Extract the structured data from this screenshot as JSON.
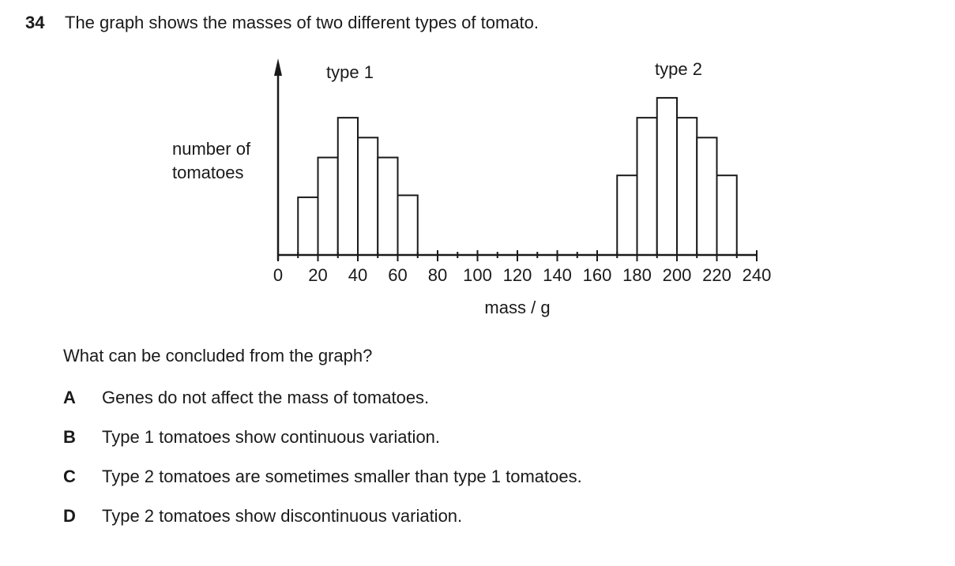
{
  "question": {
    "number": "34",
    "text": "The graph shows the masses of two different types of tomato.",
    "prompt": "What can be concluded from the graph?"
  },
  "options": [
    {
      "letter": "A",
      "text": "Genes do not affect the mass of tomatoes."
    },
    {
      "letter": "B",
      "text": "Type 1 tomatoes show continuous variation."
    },
    {
      "letter": "C",
      "text": "Type 2 tomatoes are sometimes smaller than type 1 tomatoes."
    },
    {
      "letter": "D",
      "text": "Type 2 tomatoes show discontinuous variation."
    }
  ],
  "chart_data": {
    "type": "bar",
    "xlabel": "mass / g",
    "ylabel": "number of tomatoes",
    "ylabel_lines": [
      "number of",
      "tomatoes"
    ],
    "xlim": [
      0,
      240
    ],
    "ylim": [
      0,
      8
    ],
    "x_ticks": [
      0,
      20,
      40,
      60,
      80,
      100,
      120,
      140,
      160,
      180,
      200,
      220,
      240
    ],
    "x_tick_labels": [
      "0",
      "20",
      "40",
      "60",
      "80",
      "100",
      "120",
      "140",
      "160",
      "180",
      "200",
      "220",
      "240"
    ],
    "bin_width": 10,
    "grid": false,
    "series": [
      {
        "name": "type 1",
        "bin_starts": [
          10,
          20,
          30,
          40,
          50,
          60
        ],
        "values": [
          2.9,
          4.9,
          6.9,
          5.9,
          4.9,
          3.0
        ]
      },
      {
        "name": "type 2",
        "bin_starts": [
          170,
          180,
          190,
          200,
          210,
          220
        ],
        "values": [
          4.0,
          6.9,
          7.9,
          6.9,
          5.9,
          4.0
        ]
      }
    ]
  }
}
